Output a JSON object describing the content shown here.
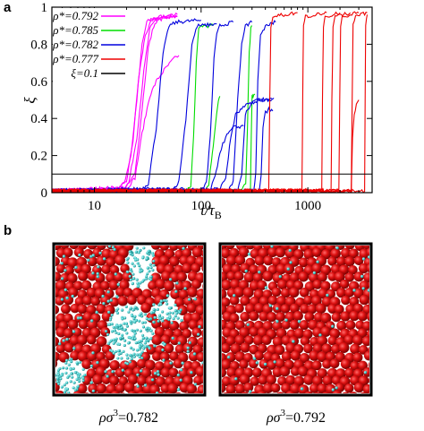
{
  "panel_a_label": "a",
  "panel_b_label": "b",
  "chart_data": {
    "type": "line",
    "xscale": "log",
    "xlim": [
      4,
      4000
    ],
    "ylim": [
      0,
      1
    ],
    "xticks": [
      10,
      100,
      1000
    ],
    "xtick_labels": [
      "10",
      "100",
      "1000"
    ],
    "yticks": [
      0,
      0.2,
      0.4,
      0.6,
      0.8,
      1
    ],
    "ytick_labels": [
      "0",
      "0.2",
      "0.4",
      "0.6",
      "0.8",
      "1"
    ],
    "xlabel_main": "t/τ",
    "xlabel_sub": "B",
    "ylabel": "ξ",
    "legend_position": "top-left",
    "series": [
      {
        "name": "ρ*=0.792",
        "color": "#ff00ff",
        "runs": [
          {
            "x": [
              4,
              16,
              19,
              22,
              25,
              28,
              31,
              35,
              42,
              60
            ],
            "y": [
              0.01,
              0.02,
              0.05,
              0.2,
              0.5,
              0.8,
              0.92,
              0.94,
              0.95,
              0.95
            ]
          },
          {
            "x": [
              4,
              17,
              20,
              23,
              26,
              30,
              34,
              40,
              60
            ],
            "y": [
              0.01,
              0.02,
              0.06,
              0.28,
              0.62,
              0.85,
              0.92,
              0.94,
              0.95
            ]
          },
          {
            "x": [
              4,
              18,
              21,
              25,
              29,
              33,
              38,
              50,
              60
            ],
            "y": [
              0.01,
              0.02,
              0.05,
              0.3,
              0.65,
              0.88,
              0.94,
              0.95,
              0.96
            ]
          },
          {
            "x": [
              4,
              20,
              24,
              28,
              32,
              36,
              40,
              50
            ],
            "y": [
              0.01,
              0.03,
              0.1,
              0.45,
              0.78,
              0.9,
              0.93,
              0.95
            ]
          },
          {
            "x": [
              4,
              20,
              24,
              28,
              33,
              38,
              45,
              55,
              62
            ],
            "y": [
              0.01,
              0.02,
              0.08,
              0.32,
              0.52,
              0.6,
              0.66,
              0.72,
              0.74
            ]
          }
        ]
      },
      {
        "name": "ρ*=0.785",
        "color": "#00dd00",
        "runs": [
          {
            "x": [
              4,
              70,
              80,
              85,
              90,
              95,
              100,
              130
            ],
            "y": [
              0.01,
              0.01,
              0.03,
              0.3,
              0.7,
              0.88,
              0.9,
              0.9
            ]
          },
          {
            "x": [
              4,
              240,
              262,
              272,
              282,
              292,
              300
            ],
            "y": [
              0.01,
              0.01,
              0.05,
              0.35,
              0.75,
              0.88,
              0.9
            ]
          },
          {
            "x": [
              4,
              110,
              118,
              125,
              130,
              135,
              145,
              150
            ],
            "y": [
              0.01,
              0.01,
              0.05,
              0.18,
              0.25,
              0.35,
              0.5,
              0.52
            ]
          },
          {
            "x": [
              4,
              290,
              295,
              300,
              305,
              320
            ],
            "y": [
              0.01,
              0.01,
              0.3,
              0.52,
              0.52,
              0.53
            ]
          }
        ]
      },
      {
        "name": "ρ*=0.782",
        "color": "#0000dd",
        "runs": [
          {
            "x": [
              4,
              28,
              32,
              38,
              44,
              50,
              60,
              100
            ],
            "y": [
              0.01,
              0.02,
              0.05,
              0.35,
              0.75,
              0.9,
              0.92,
              0.93
            ]
          },
          {
            "x": [
              4,
              55,
              62,
              72,
              82,
              92,
              100,
              140
            ],
            "y": [
              0.01,
              0.02,
              0.06,
              0.4,
              0.8,
              0.9,
              0.9,
              0.91
            ]
          },
          {
            "x": [
              4,
              100,
              112,
              122,
              132,
              140,
              150,
              200
            ],
            "y": [
              0.01,
              0.01,
              0.05,
              0.3,
              0.72,
              0.85,
              0.9,
              0.92
            ]
          },
          {
            "x": [
              4,
              180,
              200,
              220,
              240,
              260,
              300
            ],
            "y": [
              0.01,
              0.01,
              0.06,
              0.5,
              0.8,
              0.9,
              0.92
            ]
          },
          {
            "x": [
              4,
              220,
              240,
              260,
              280,
              300,
              340,
              480
            ],
            "y": [
              0.01,
              0.01,
              0.1,
              0.42,
              0.46,
              0.48,
              0.5,
              0.51
            ]
          },
          {
            "x": [
              4,
              150,
              170,
              190,
              210,
              240,
              280,
              330,
              400,
              460
            ],
            "y": [
              0.01,
              0.02,
              0.08,
              0.3,
              0.42,
              0.45,
              0.48,
              0.5,
              0.5,
              0.5
            ]
          },
          {
            "x": [
              4,
              350,
              365,
              380,
              400,
              430,
              470
            ],
            "y": [
              0.01,
              0.01,
              0.1,
              0.35,
              0.43,
              0.45,
              0.44
            ]
          },
          {
            "x": [
              4,
              310,
              325,
              340,
              360,
              400,
              500
            ],
            "y": [
              0.01,
              0.01,
              0.1,
              0.6,
              0.85,
              0.9,
              0.92
            ]
          },
          {
            "x": [
              4,
              120,
              135,
              150,
              170,
              200,
              250
            ],
            "y": [
              0.01,
              0.01,
              0.08,
              0.22,
              0.3,
              0.35,
              0.36
            ]
          }
        ]
      },
      {
        "name": "ρ*=0.777",
        "color": "#ee0000",
        "runs": [
          {
            "x": [
              4,
              430,
              440,
              450,
              470,
              800
            ],
            "y": [
              0.01,
              0.01,
              0.5,
              0.9,
              0.95,
              0.97
            ]
          },
          {
            "x": [
              4,
              880,
              895,
              910,
              950,
              1500
            ],
            "y": [
              0.01,
              0.01,
              0.5,
              0.9,
              0.95,
              0.97
            ]
          },
          {
            "x": [
              4,
              1350,
              1370,
              1400,
              1450,
              2000
            ],
            "y": [
              0.01,
              0.01,
              0.5,
              0.9,
              0.95,
              0.97
            ]
          },
          {
            "x": [
              4,
              1650,
              1680,
              1720,
              1800,
              2500
            ],
            "y": [
              0.01,
              0.01,
              0.5,
              0.9,
              0.95,
              0.97
            ]
          },
          {
            "x": [
              4,
              1950,
              1990,
              2030,
              2100,
              3000
            ],
            "y": [
              0.01,
              0.01,
              0.5,
              0.9,
              0.95,
              0.97
            ]
          },
          {
            "x": [
              4,
              2550,
              2600,
              2650,
              2800,
              3600
            ],
            "y": [
              0.01,
              0.01,
              0.5,
              0.9,
              0.95,
              0.97
            ]
          },
          {
            "x": [
              4,
              2550,
              2620,
              2720,
              2850,
              3000
            ],
            "y": [
              0.01,
              0.01,
              0.3,
              0.42,
              0.48,
              0.5
            ]
          },
          {
            "x": [
              4,
              3400,
              3440,
              3480,
              3600
            ],
            "y": [
              0.01,
              0.01,
              0.5,
              0.9,
              0.96
            ]
          }
        ]
      },
      {
        "name": "ξ=0.1",
        "color": "#000000",
        "runs": [
          {
            "x": [
              4,
              4000
            ],
            "y": [
              0.1,
              0.1
            ]
          }
        ]
      }
    ]
  },
  "snapshots": [
    {
      "caption_main": "ρσ",
      "caption_sup": "3",
      "caption_value": "=0.782"
    },
    {
      "caption_main": "ρσ",
      "caption_sup": "3",
      "caption_value": "=0.792"
    }
  ],
  "colors": {
    "particle_red": "#dd1111",
    "particle_dark": "#7a0000",
    "particle_cyan": "#44cccc",
    "frame": "#000000"
  }
}
